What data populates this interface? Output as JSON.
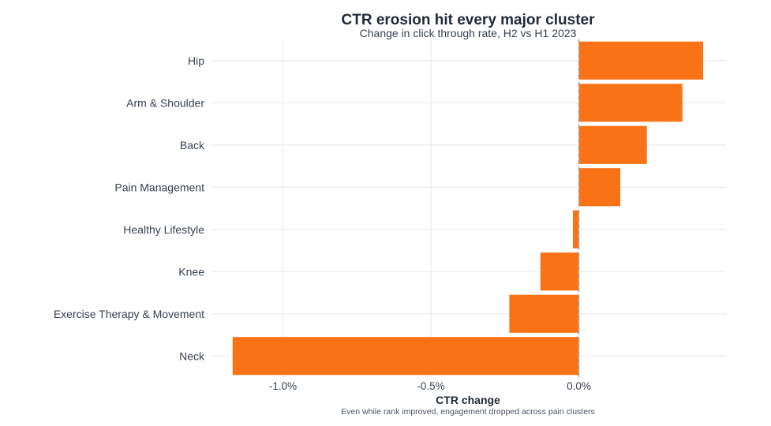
{
  "chart_data": {
    "type": "bar",
    "orientation": "horizontal",
    "title": "CTR erosion hit every major cluster",
    "subtitle": "Change in click through rate, H2 vs H1 2023",
    "xlabel": "CTR change",
    "ylabel": "",
    "caption": "Even while rank improved, engagement dropped across pain clusters",
    "categories": [
      "Hip",
      "Arm & Shoulder",
      "Back",
      "Pain Management",
      "Healthy Lifestyle",
      "Knee",
      "Exercise Therapy & Movement",
      "Neck"
    ],
    "values": [
      0.42,
      0.35,
      0.23,
      0.14,
      -0.02,
      -0.13,
      -0.235,
      -1.17
    ],
    "unit": "%",
    "xlim": [
      -1.17,
      0.5
    ],
    "xticks": [
      -1.0,
      -0.5,
      0.0
    ],
    "xtick_labels": [
      "-1.0%",
      "-0.5%",
      "0.0%"
    ],
    "grid": true,
    "legend": "none",
    "colors": {
      "bar": "#f97316",
      "grid": "#e5e7eb",
      "zero_line": "#9ca3af"
    }
  }
}
